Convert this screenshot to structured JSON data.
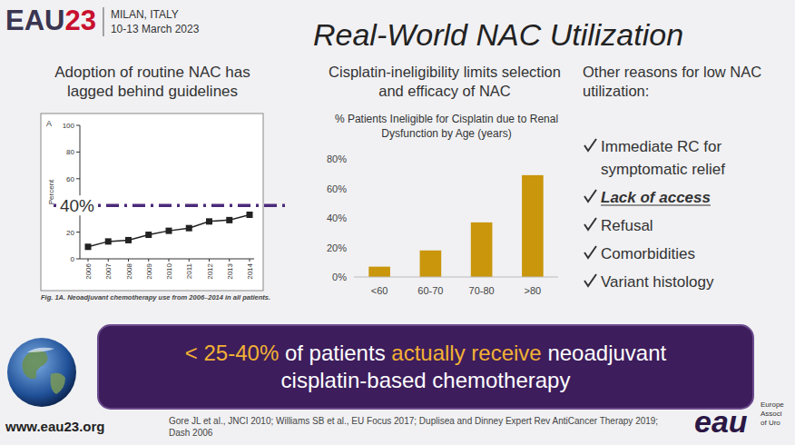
{
  "header": {
    "logo": "EAU",
    "logo_year": "23",
    "city": "MILAN, ITALY",
    "dates": "10-13 March 2023",
    "title": "Real-World NAC Utilization"
  },
  "chart_data": [
    {
      "type": "line",
      "title": "Adoption of routine NAC has lagged behind guidelines",
      "panel_label": "A",
      "y_label": "Percent",
      "categories": [
        "2006",
        "2007",
        "2008",
        "2009",
        "2010",
        "2011",
        "2012",
        "2013",
        "2014"
      ],
      "values": [
        9,
        13,
        14,
        18,
        21,
        23,
        28,
        29,
        33
      ],
      "color": "#222222",
      "marker": "square",
      "ylim": [
        0,
        100
      ],
      "yticks": [
        0,
        20,
        60,
        80,
        100
      ],
      "grid": false,
      "annotations": [
        {
          "value": 40,
          "label": "40%",
          "color": "#4b2a7a",
          "line_style": "dashdot"
        }
      ],
      "caption": "Fig. 1A. Neoadjuvant chemotherapy use from 2006–2014 in all patients."
    },
    {
      "type": "bar",
      "title": "Cisplatin-ineligibility limits selection and efficacy of NAC",
      "subtitle": "% Patients Ineligible for Cisplatin due to Renal Dysfunction by Age (years)",
      "categories": [
        "<60",
        "60-70",
        "70-80",
        ">80"
      ],
      "values": [
        7,
        18,
        37,
        69
      ],
      "color": "#c9960c",
      "ylim": [
        0,
        80
      ],
      "yticks": [
        {
          "value": 0,
          "label": "0%"
        },
        {
          "value": 20,
          "label": "20%"
        },
        {
          "value": 40,
          "label": "40%"
        },
        {
          "value": 60,
          "label": "60%"
        },
        {
          "value": 80,
          "label": "80%"
        }
      ],
      "grid": false
    }
  ],
  "reasons": {
    "title": "Other reasons for low NAC utilization:",
    "items": [
      "Immediate RC for symptomatic relief",
      "Lack of access",
      "Refusal",
      "Comorbidities",
      "Variant histology"
    ],
    "highlight": "Lack of access"
  },
  "banner": [
    {
      "text": "< 25-40%",
      "highlight": true
    },
    {
      "text": "of patients",
      "highlight": false
    },
    {
      "text": "actually receive",
      "highlight": true
    },
    {
      "text": "neoadjuvant cisplatin-based chemotherapy",
      "highlight": false
    }
  ],
  "footer": {
    "url": "www.eau23.org",
    "references": "Gore JL et al., JNCI 2010; Williams SB et al., EU Focus 2017; Duplisea and Dinney Expert Rev AntiCancer Therapy 2019; Dash 2006",
    "logo": "eau",
    "org_lines": [
      "Europe",
      "Associ",
      "of Uro"
    ]
  }
}
